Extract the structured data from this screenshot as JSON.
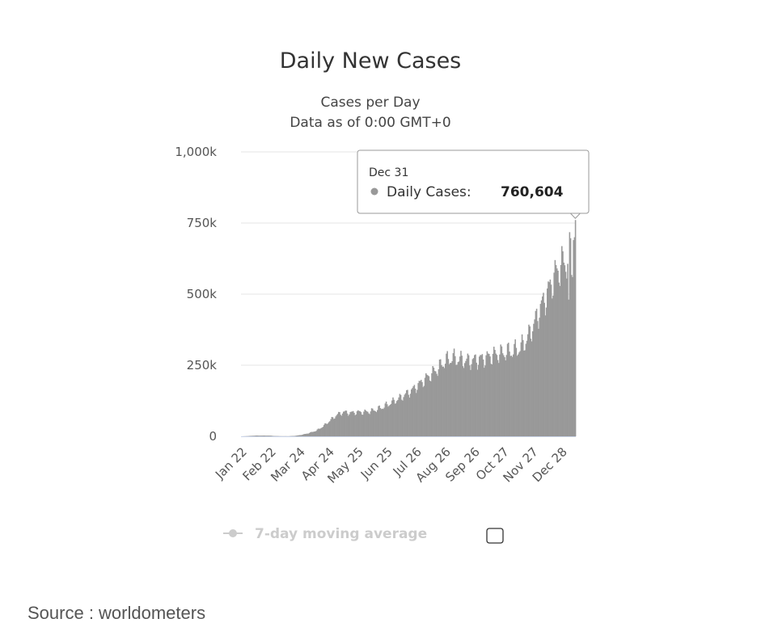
{
  "colors": {
    "bar": "#999999",
    "grid": "#e6e6e6",
    "axis": "#ccd6eb",
    "tooltip_border": "#999999",
    "legend_inactive": "#cccccc"
  },
  "source_text": "Source : worldometers",
  "chart_data": {
    "type": "bar",
    "title": "Daily New Cases",
    "subtitle_lines": [
      "Cases per Day",
      "Data as of 0:00 GMT+0"
    ],
    "x_tick_labels": [
      "Jan 22",
      "Feb 22",
      "Mar 24",
      "Apr 24",
      "May 25",
      "Jun 25",
      "Jul 26",
      "Aug 26",
      "Sep 26",
      "Oct 27",
      "Nov 27",
      "Dec 28"
    ],
    "x_range": [
      "Jan 22",
      "Dec 31"
    ],
    "y_tick_labels": [
      "0",
      "250k",
      "500k",
      "750k",
      "1,000k"
    ],
    "ylim": [
      0,
      1000000
    ],
    "grid": true,
    "legend": {
      "position": "bottom",
      "items": [
        {
          "label": "7-day moving average",
          "active": false
        }
      ]
    },
    "tooltip": {
      "date": "Dec 31",
      "series_label": "Daily Cases:",
      "value_text": "760,604",
      "value": 760604
    },
    "series": [
      {
        "name": "Daily Cases",
        "approx_weekly_values": [
          0,
          1000,
          2500,
          2500,
          2500,
          1000,
          500,
          500,
          2000,
          6000,
          12000,
          20000,
          35000,
          55000,
          75000,
          85000,
          82000,
          85000,
          85000,
          88000,
          95000,
          105000,
          118000,
          130000,
          145000,
          160000,
          180000,
          200000,
          220000,
          240000,
          265000,
          275000,
          270000,
          265000,
          265000,
          270000,
          275000,
          285000,
          290000,
          295000,
          300000,
          310000,
          340000,
          390000,
          450000,
          500000,
          560000,
          600000,
          620000,
          625000,
          640000,
          655000,
          665000,
          680000
        ],
        "peak_day": "Dec 31",
        "peak_value": 760604
      }
    ]
  }
}
